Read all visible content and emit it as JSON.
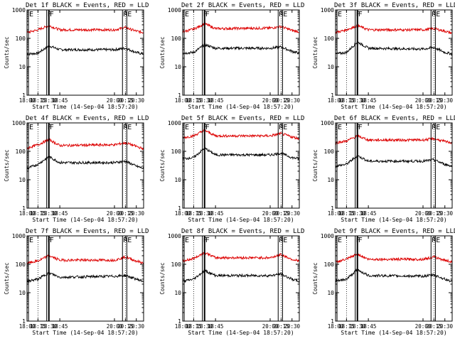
{
  "colors": {
    "events": "#000000",
    "lld": "#dd0000",
    "axis": "#000000"
  },
  "chart_data": [
    {
      "type": "line",
      "title": "Det 1f BLACK = Events, RED = LLD",
      "xlabel": "Start Time (14-Sep-04 18:57:20)",
      "ylabel": "Counts/sec",
      "yscale": "log",
      "ylim": [
        1,
        1000
      ],
      "xlim": [
        "18:00",
        "20:40"
      ],
      "x_ticks": [
        "18:00",
        "18:15",
        "18:30",
        "18:45",
        "20:00",
        "20:15",
        "20:30"
      ],
      "y_ticks": [
        "1",
        "10",
        "100",
        "1000"
      ],
      "markers": [
        {
          "label": "E",
          "time": "18:02",
          "style": "thin"
        },
        {
          "label": "F",
          "time": "18:27",
          "style": "thin"
        },
        {
          "label": "F",
          "time": "18:30",
          "style": "thick"
        },
        {
          "label": "RE",
          "time": "20:11",
          "style": "thin"
        },
        {
          "label": "",
          "time": "20:17",
          "style": "thin"
        }
      ],
      "series": [
        {
          "key": "events",
          "times": [
            "18:00",
            "18:15",
            "18:30",
            "18:45",
            "20:00",
            "20:15",
            "20:30",
            "20:40"
          ],
          "values": [
            28,
            30,
            55,
            40,
            40,
            45,
            32,
            28
          ]
        },
        {
          "key": "lld",
          "times": [
            "18:00",
            "18:15",
            "18:30",
            "18:45",
            "20:00",
            "20:15",
            "20:30",
            "20:40"
          ],
          "values": [
            160,
            200,
            280,
            200,
            200,
            240,
            180,
            160
          ]
        }
      ]
    },
    {
      "type": "line",
      "title": "Det 2f BLACK = Events, RED = LLD",
      "xlabel": "Start Time (14-Sep-04 18:57:20)",
      "ylabel": "Counts/sec",
      "yscale": "log",
      "ylim": [
        1,
        1000
      ],
      "xlim": [
        "18:00",
        "20:40"
      ],
      "x_ticks": [
        "18:00",
        "18:15",
        "18:30",
        "18:45",
        "20:00",
        "20:15",
        "20:30"
      ],
      "y_ticks": [
        "1",
        "10",
        "100",
        "1000"
      ],
      "markers": [
        {
          "label": "E",
          "time": "18:02",
          "style": "thin"
        },
        {
          "label": "F",
          "time": "18:27",
          "style": "thin"
        },
        {
          "label": "F",
          "time": "18:30",
          "style": "thick"
        },
        {
          "label": "RE",
          "time": "20:11",
          "style": "thin"
        },
        {
          "label": "",
          "time": "20:17",
          "style": "thin"
        }
      ],
      "series": [
        {
          "key": "events",
          "times": [
            "18:00",
            "18:15",
            "18:30",
            "18:45",
            "20:00",
            "20:15",
            "20:30",
            "20:40"
          ],
          "values": [
            30,
            32,
            60,
            45,
            45,
            50,
            35,
            30
          ]
        },
        {
          "key": "lld",
          "times": [
            "18:00",
            "18:15",
            "18:30",
            "18:45",
            "20:00",
            "20:15",
            "20:30",
            "20:40"
          ],
          "values": [
            170,
            210,
            330,
            220,
            230,
            260,
            190,
            170
          ]
        }
      ]
    },
    {
      "type": "line",
      "title": "Det 3f BLACK = Events, RED = LLD",
      "xlabel": "Start Time (14-Sep-04 18:57:20)",
      "ylabel": "Counts/sec",
      "yscale": "log",
      "ylim": [
        1,
        1000
      ],
      "xlim": [
        "18:00",
        "20:40"
      ],
      "x_ticks": [
        "18:00",
        "18:15",
        "18:30",
        "18:45",
        "20:00",
        "20:15",
        "20:30"
      ],
      "y_ticks": [
        "1",
        "10",
        "100",
        "1000"
      ],
      "markers": [
        {
          "label": "E",
          "time": "18:02",
          "style": "thin"
        },
        {
          "label": "F",
          "time": "18:27",
          "style": "thin"
        },
        {
          "label": "F",
          "time": "18:30",
          "style": "thick"
        },
        {
          "label": "RE",
          "time": "20:11",
          "style": "thin"
        },
        {
          "label": "",
          "time": "20:17",
          "style": "thin"
        }
      ],
      "series": [
        {
          "key": "events",
          "times": [
            "18:00",
            "18:15",
            "18:30",
            "18:45",
            "20:00",
            "20:15",
            "20:30",
            "20:40"
          ],
          "values": [
            28,
            32,
            75,
            45,
            42,
            48,
            32,
            28
          ]
        },
        {
          "key": "lld",
          "times": [
            "18:00",
            "18:15",
            "18:30",
            "18:45",
            "20:00",
            "20:15",
            "20:30",
            "20:40"
          ],
          "values": [
            160,
            200,
            280,
            200,
            200,
            220,
            180,
            150
          ]
        }
      ]
    },
    {
      "type": "line",
      "title": "Det 4f BLACK = Events, RED = LLD",
      "xlabel": "Start Time (14-Sep-04 18:57:20)",
      "ylabel": "Counts/sec",
      "yscale": "log",
      "ylim": [
        1,
        1000
      ],
      "xlim": [
        "18:00",
        "20:40"
      ],
      "x_ticks": [
        "18:00",
        "18:15",
        "18:30",
        "18:45",
        "20:00",
        "20:15",
        "20:30"
      ],
      "y_ticks": [
        "1",
        "10",
        "100",
        "1000"
      ],
      "markers": [
        {
          "label": "E",
          "time": "18:02",
          "style": "thin"
        },
        {
          "label": "F",
          "time": "18:27",
          "style": "thin"
        },
        {
          "label": "F",
          "time": "18:30",
          "style": "thick"
        },
        {
          "label": "RE",
          "time": "20:11",
          "style": "thin"
        },
        {
          "label": "",
          "time": "20:17",
          "style": "thin"
        }
      ],
      "series": [
        {
          "key": "events",
          "times": [
            "18:00",
            "18:15",
            "18:30",
            "18:45",
            "20:00",
            "20:15",
            "20:30",
            "20:40"
          ],
          "values": [
            25,
            35,
            65,
            40,
            40,
            45,
            30,
            25
          ]
        },
        {
          "key": "lld",
          "times": [
            "18:00",
            "18:15",
            "18:30",
            "18:45",
            "20:00",
            "20:15",
            "20:30",
            "20:40"
          ],
          "values": [
            130,
            170,
            260,
            160,
            170,
            200,
            150,
            120
          ]
        }
      ]
    },
    {
      "type": "line",
      "title": "Det 5f BLACK = Events, RED = LLD",
      "xlabel": "Start Time (14-Sep-04 18:57:20)",
      "ylabel": "Counts/sec",
      "yscale": "log",
      "ylim": [
        1,
        1000
      ],
      "xlim": [
        "18:00",
        "20:40"
      ],
      "x_ticks": [
        "18:00",
        "18:15",
        "18:30",
        "18:45",
        "20:00",
        "20:15",
        "20:30"
      ],
      "y_ticks": [
        "1",
        "10",
        "100",
        "1000"
      ],
      "markers": [
        {
          "label": "E",
          "time": "18:02",
          "style": "thin"
        },
        {
          "label": "F",
          "time": "18:27",
          "style": "thin"
        },
        {
          "label": "F",
          "time": "18:30",
          "style": "thick"
        },
        {
          "label": "RE",
          "time": "20:11",
          "style": "thin"
        },
        {
          "label": "",
          "time": "20:17",
          "style": "thin"
        }
      ],
      "series": [
        {
          "key": "events",
          "times": [
            "18:00",
            "18:15",
            "18:30",
            "18:45",
            "20:00",
            "20:15",
            "20:30",
            "20:40"
          ],
          "values": [
            55,
            60,
            130,
            75,
            75,
            85,
            60,
            55
          ]
        },
        {
          "key": "lld",
          "times": [
            "18:00",
            "18:15",
            "18:30",
            "18:45",
            "20:00",
            "20:15",
            "20:30",
            "20:40"
          ],
          "values": [
            300,
            350,
            550,
            350,
            350,
            420,
            320,
            280
          ]
        }
      ]
    },
    {
      "type": "line",
      "title": "Det 6f BLACK = Events, RED = LLD",
      "xlabel": "Start Time (14-Sep-04 18:57:20)",
      "ylabel": "Counts/sec",
      "yscale": "log",
      "ylim": [
        1,
        1000
      ],
      "xlim": [
        "18:00",
        "20:40"
      ],
      "x_ticks": [
        "18:00",
        "18:15",
        "18:30",
        "18:45",
        "20:00",
        "20:15",
        "20:30"
      ],
      "y_ticks": [
        "1",
        "10",
        "100",
        "1000"
      ],
      "markers": [
        {
          "label": "E",
          "time": "18:02",
          "style": "thin"
        },
        {
          "label": "F",
          "time": "18:27",
          "style": "thin"
        },
        {
          "label": "F",
          "time": "18:30",
          "style": "thick"
        },
        {
          "label": "RE",
          "time": "20:11",
          "style": "thin"
        },
        {
          "label": "",
          "time": "20:17",
          "style": "thin"
        }
      ],
      "series": [
        {
          "key": "events",
          "times": [
            "18:00",
            "18:15",
            "18:30",
            "18:45",
            "20:00",
            "20:15",
            "20:30",
            "20:40"
          ],
          "values": [
            30,
            35,
            70,
            45,
            45,
            50,
            35,
            30
          ]
        },
        {
          "key": "lld",
          "times": [
            "18:00",
            "18:15",
            "18:30",
            "18:45",
            "20:00",
            "20:15",
            "20:30",
            "20:40"
          ],
          "values": [
            200,
            230,
            350,
            250,
            250,
            280,
            220,
            200
          ]
        }
      ]
    },
    {
      "type": "line",
      "title": "Det 7f BLACK = Events, RED = LLD",
      "xlabel": "Start Time (14-Sep-04 18:57:20)",
      "ylabel": "Counts/sec",
      "yscale": "log",
      "ylim": [
        1,
        1000
      ],
      "xlim": [
        "18:00",
        "20:40"
      ],
      "x_ticks": [
        "18:00",
        "18:15",
        "18:30",
        "18:45",
        "20:00",
        "20:15",
        "20:30"
      ],
      "y_ticks": [
        "1",
        "10",
        "100",
        "1000"
      ],
      "markers": [
        {
          "label": "E",
          "time": "18:02",
          "style": "thin"
        },
        {
          "label": "F",
          "time": "18:27",
          "style": "thin"
        },
        {
          "label": "F",
          "time": "18:30",
          "style": "thick"
        },
        {
          "label": "RE",
          "time": "20:11",
          "style": "thin"
        },
        {
          "label": "",
          "time": "20:17",
          "style": "thin"
        }
      ],
      "series": [
        {
          "key": "events",
          "times": [
            "18:00",
            "18:15",
            "18:30",
            "18:45",
            "20:00",
            "20:15",
            "20:30",
            "20:40"
          ],
          "values": [
            25,
            30,
            50,
            35,
            38,
            40,
            30,
            25
          ]
        },
        {
          "key": "lld",
          "times": [
            "18:00",
            "18:15",
            "18:30",
            "18:45",
            "20:00",
            "20:15",
            "20:30",
            "20:40"
          ],
          "values": [
            110,
            130,
            200,
            140,
            140,
            180,
            130,
            110
          ]
        }
      ]
    },
    {
      "type": "line",
      "title": "Det 8f BLACK = Events, RED = LLD",
      "xlabel": "Start Time (14-Sep-04 18:57:20)",
      "ylabel": "Counts/sec",
      "yscale": "log",
      "ylim": [
        1,
        1000
      ],
      "xlim": [
        "18:00",
        "20:40"
      ],
      "x_ticks": [
        "18:00",
        "18:15",
        "18:30",
        "18:45",
        "20:00",
        "20:15",
        "20:30"
      ],
      "y_ticks": [
        "1",
        "10",
        "100",
        "1000"
      ],
      "markers": [
        {
          "label": "E",
          "time": "18:02",
          "style": "thin"
        },
        {
          "label": "F",
          "time": "18:27",
          "style": "thin"
        },
        {
          "label": "F",
          "time": "18:30",
          "style": "thick"
        },
        {
          "label": "RE",
          "time": "20:11",
          "style": "thin"
        },
        {
          "label": "",
          "time": "20:17",
          "style": "thin"
        }
      ],
      "series": [
        {
          "key": "events",
          "times": [
            "18:00",
            "18:15",
            "18:30",
            "18:45",
            "20:00",
            "20:15",
            "20:30",
            "20:40"
          ],
          "values": [
            25,
            30,
            60,
            40,
            40,
            45,
            30,
            25
          ]
        },
        {
          "key": "lld",
          "times": [
            "18:00",
            "18:15",
            "18:30",
            "18:45",
            "20:00",
            "20:15",
            "20:30",
            "20:40"
          ],
          "values": [
            130,
            160,
            260,
            170,
            170,
            220,
            150,
            130
          ]
        }
      ]
    },
    {
      "type": "line",
      "title": "Det 9f BLACK = Events, RED = LLD",
      "xlabel": "Start Time (14-Sep-04 18:57:20)",
      "ylabel": "Counts/sec",
      "yscale": "log",
      "ylim": [
        1,
        1000
      ],
      "xlim": [
        "18:00",
        "20:40"
      ],
      "x_ticks": [
        "18:00",
        "18:15",
        "18:30",
        "18:45",
        "20:00",
        "20:15",
        "20:30"
      ],
      "y_ticks": [
        "1",
        "10",
        "100",
        "1000"
      ],
      "markers": [
        {
          "label": "E",
          "time": "18:02",
          "style": "thin"
        },
        {
          "label": "F",
          "time": "18:27",
          "style": "thin"
        },
        {
          "label": "F",
          "time": "18:30",
          "style": "thick"
        },
        {
          "label": "RE",
          "time": "20:11",
          "style": "thin"
        },
        {
          "label": "",
          "time": "20:17",
          "style": "thin"
        }
      ],
      "series": [
        {
          "key": "events",
          "times": [
            "18:00",
            "18:15",
            "18:30",
            "18:45",
            "20:00",
            "20:15",
            "20:30",
            "20:40"
          ],
          "values": [
            25,
            30,
            65,
            40,
            38,
            42,
            30,
            25
          ]
        },
        {
          "key": "lld",
          "times": [
            "18:00",
            "18:15",
            "18:30",
            "18:45",
            "20:00",
            "20:15",
            "20:30",
            "20:40"
          ],
          "values": [
            120,
            150,
            230,
            150,
            150,
            180,
            140,
            120
          ]
        }
      ]
    }
  ]
}
